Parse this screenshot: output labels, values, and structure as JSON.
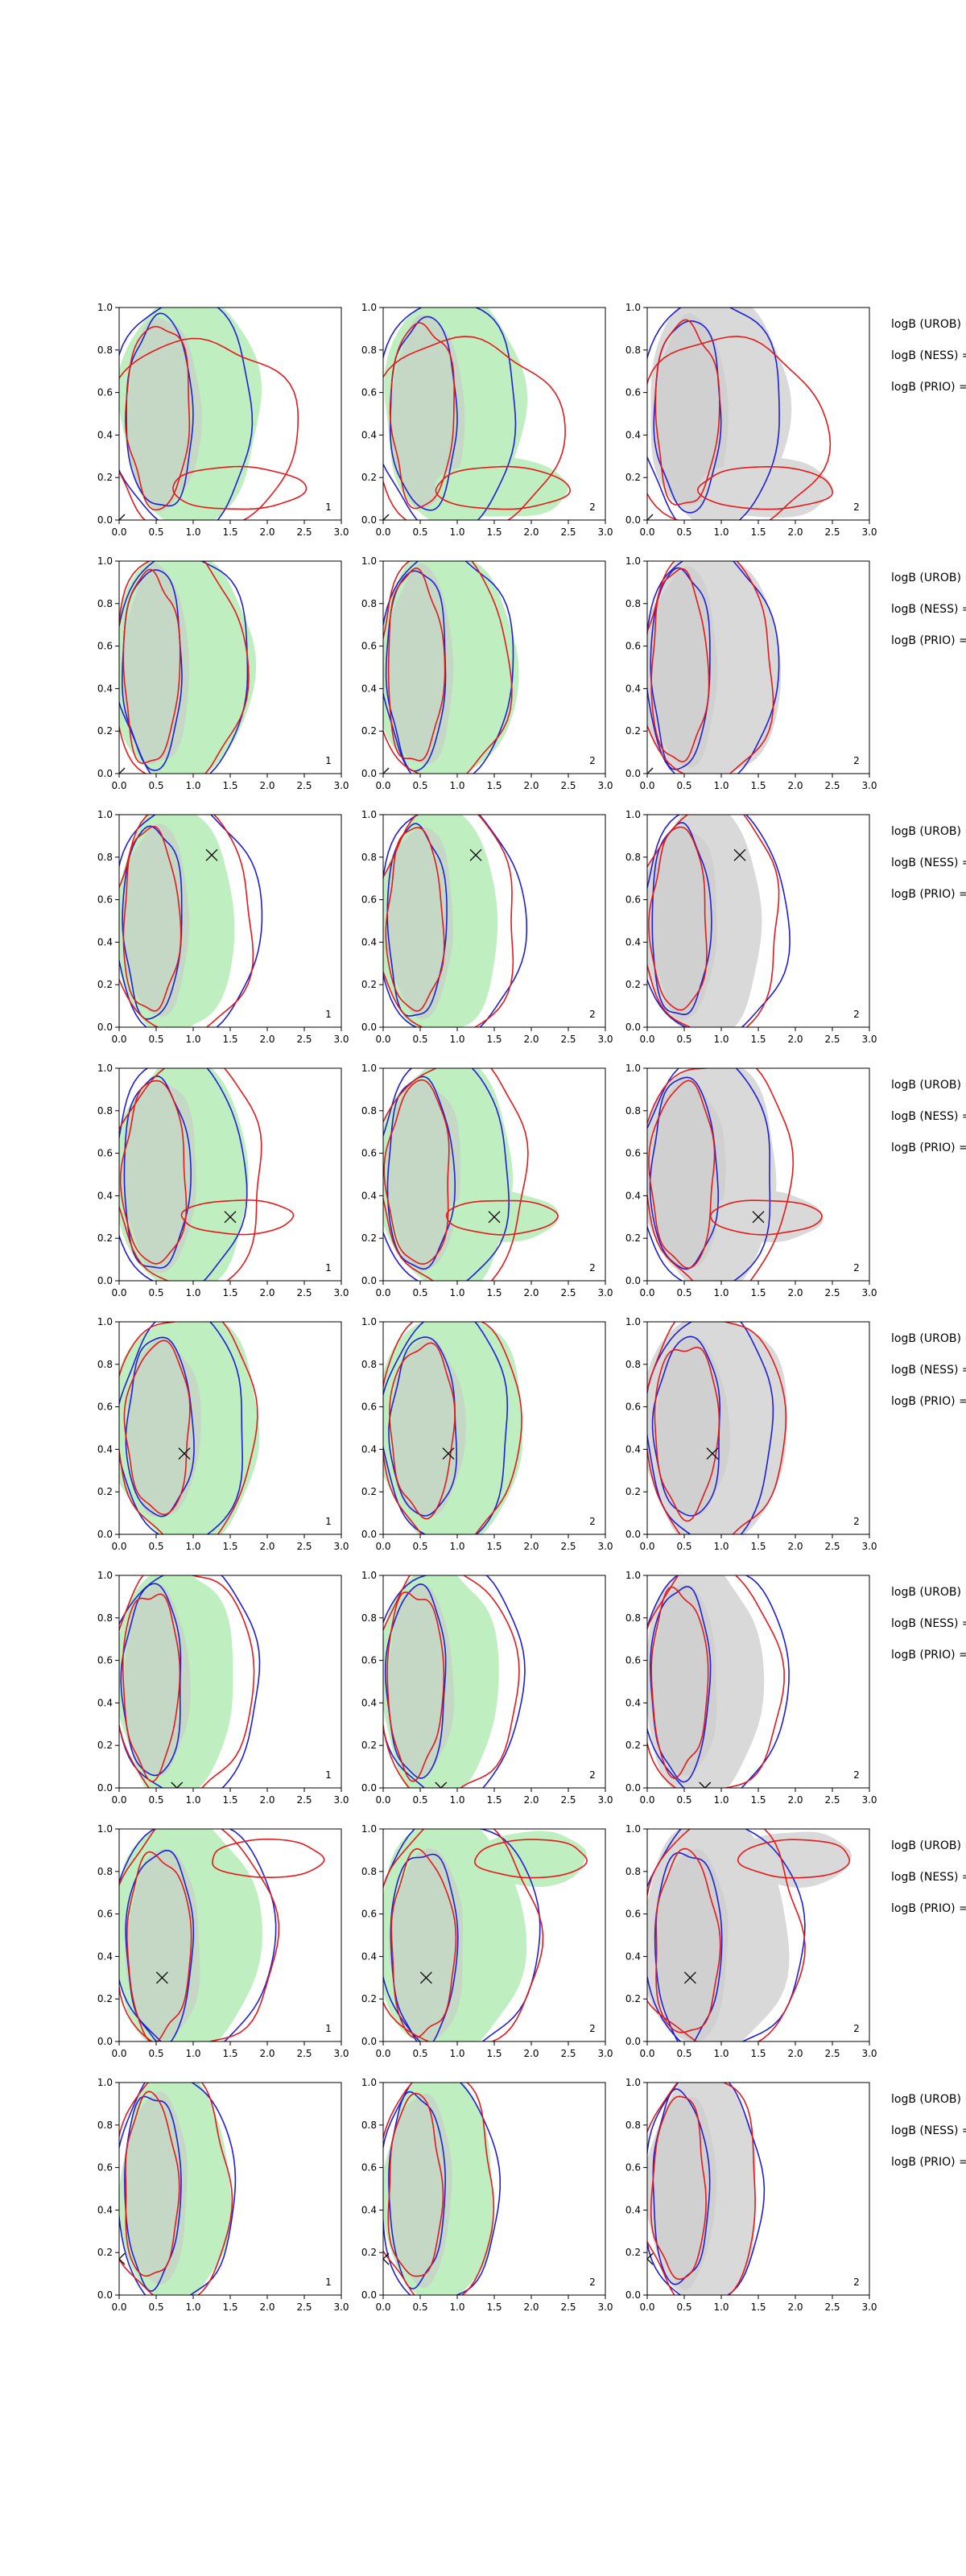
{
  "chart_data": {
    "type": "contour",
    "title": "",
    "xlim": [
      0,
      3.0
    ],
    "ylim": [
      0,
      1.0
    ],
    "x_ticks": [
      "0.0",
      "0.5",
      "1.0",
      "1.5",
      "2.0",
      "2.5",
      "3.0"
    ],
    "y_ticks": [
      "0.0",
      "0.2",
      "0.4",
      "0.6",
      "0.8",
      "1.0"
    ],
    "grid": false,
    "colors": {
      "red": "#e31a1c",
      "blue": "#1f1fd6",
      "green_fill": "#bfeec0",
      "gray_fill": "#d9d9d9"
    },
    "bf_labels": [
      "logB (UROB) =",
      "logB (NESS) =",
      "logB (PRIO) ="
    ],
    "columns": [
      {
        "panel_label": "1",
        "fill": "green"
      },
      {
        "panel_label": "2",
        "fill": "green"
      },
      {
        "panel_label": "2",
        "fill": "gray"
      }
    ],
    "rows": [
      {
        "marker": [
          0.0,
          0.0
        ],
        "shape": "tail"
      },
      {
        "marker": [
          0.0,
          0.0
        ],
        "shape": "wide"
      },
      {
        "marker": [
          1.25,
          0.81
        ],
        "shape": "normal"
      },
      {
        "marker": [
          1.5,
          0.3
        ],
        "shape": "lobe"
      },
      {
        "marker": [
          0.88,
          0.38
        ],
        "shape": "wide2"
      },
      {
        "marker": [
          0.78,
          0.0
        ],
        "shape": "normal"
      },
      {
        "marker": [
          0.58,
          0.3
        ],
        "shape": "topright"
      },
      {
        "marker": [
          0.0,
          0.17
        ],
        "shape": "narrow"
      }
    ]
  }
}
